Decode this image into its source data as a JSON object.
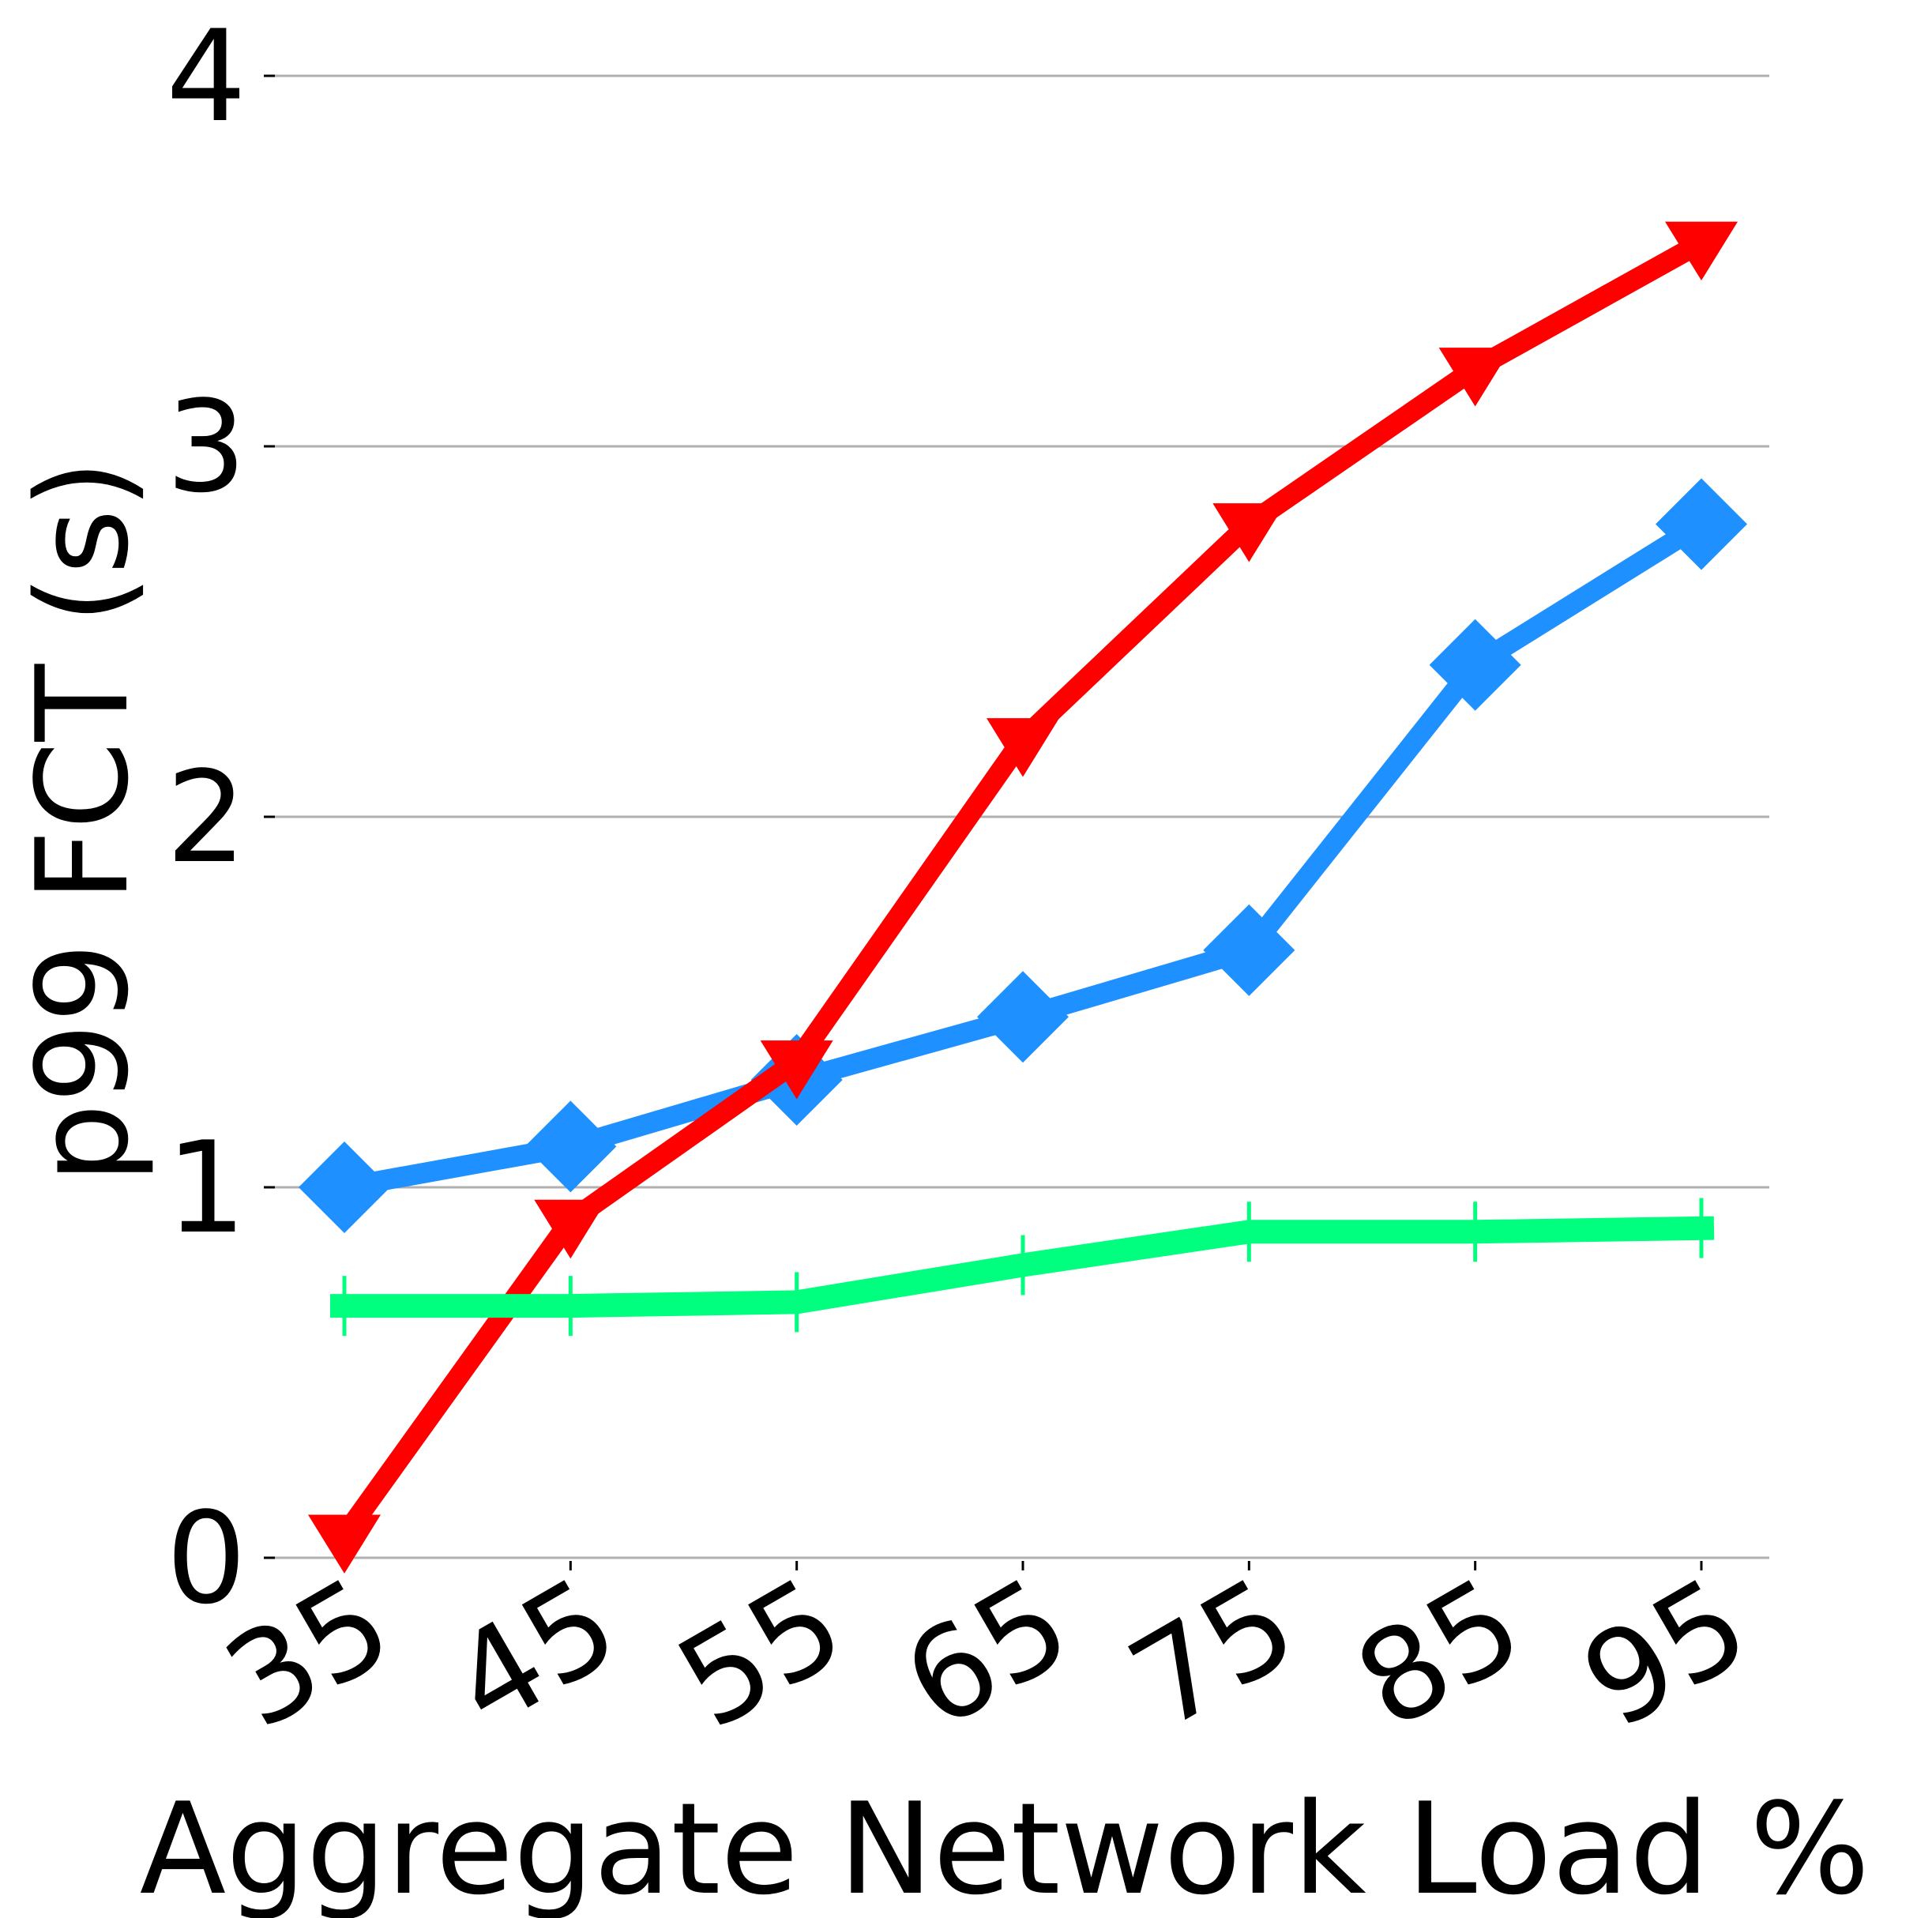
{
  "chart_data": {
    "type": "line",
    "title": "",
    "xlabel": "Aggregate Network Load %",
    "ylabel": "p99 FCT (s)",
    "categories": [
      "35",
      "45",
      "55",
      "65",
      "75",
      "85",
      "95"
    ],
    "yticks": [
      "0",
      "1",
      "2",
      "3",
      "4"
    ],
    "ylim": [
      0,
      4
    ],
    "grid": "horizontal",
    "series": [
      {
        "color": "#000000",
        "marker": "circle",
        "values": [
          1.0,
          1.12,
          1.3,
          1.47,
          1.65,
          2.43,
          2.78
        ]
      },
      {
        "color": "#1e90ff",
        "marker": "diamond",
        "values": [
          1.0,
          1.11,
          1.29,
          1.46,
          1.64,
          2.41,
          2.79
        ]
      },
      {
        "color": "#ff0000",
        "marker": "triangle-down",
        "values": [
          0.06,
          0.91,
          1.34,
          2.21,
          2.79,
          3.21,
          3.55
        ]
      },
      {
        "color": "#00ff7f",
        "marker": "vline",
        "values": [
          0.68,
          0.68,
          0.69,
          0.79,
          0.88,
          0.88,
          0.89
        ]
      }
    ]
  }
}
